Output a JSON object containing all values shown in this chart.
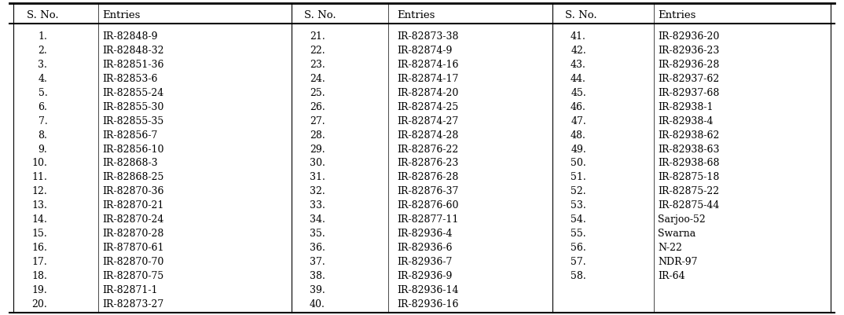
{
  "col1_nos": [
    "1.",
    "2.",
    "3.",
    "4.",
    "5.",
    "6.",
    "7.",
    "8.",
    "9.",
    "10.",
    "11.",
    "12.",
    "13.",
    "14.",
    "15.",
    "16.",
    "17.",
    "18.",
    "19.",
    "20."
  ],
  "col1_entries": [
    "IR-82848-9",
    "IR-82848-32",
    "IR-82851-36",
    "IR-82853-6",
    "IR-82855-24",
    "IR-82855-30",
    "IR-82855-35",
    "IR-82856-7",
    "IR-82856-10",
    "IR-82868-3",
    "IR-82868-25",
    "IR-82870-36",
    "IR-82870-21",
    "IR-82870-24",
    "IR-82870-28",
    "IR-87870-61",
    "IR-82870-70",
    "IR-82870-75",
    "IR-82871-1",
    "IR-82873-27"
  ],
  "col2_nos": [
    "21.",
    "22.",
    "23.",
    "24.",
    "25.",
    "26.",
    "27.",
    "28.",
    "29.",
    "30.",
    "31.",
    "32.",
    "33.",
    "34.",
    "35.",
    "36.",
    "37.",
    "38.",
    "39.",
    "40."
  ],
  "col2_entries": [
    "IR-82873-38",
    "IR-82874-9",
    "IR-82874-16",
    "IR-82874-17",
    "IR-82874-20",
    "IR-82874-25",
    "IR-82874-27",
    "IR-82874-28",
    "IR-82876-22",
    "IR-82876-23",
    "IR-82876-28",
    "IR-82876-37",
    "IR-82876-60",
    "IR-82877-11",
    "IR-82936-4",
    "IR-82936-6",
    "IR-82936-7",
    "IR-82936-9",
    "IR-82936-14",
    "IR-82936-16"
  ],
  "col3_nos": [
    "41.",
    "42.",
    "43.",
    "44.",
    "45.",
    "46.",
    "47.",
    "48.",
    "49.",
    "50.",
    "51.",
    "52.",
    "53.",
    "54.",
    "55.",
    "56.",
    "57.",
    "58.",
    "",
    ""
  ],
  "col3_entries": [
    "IR-82936-20",
    "IR-82936-23",
    "IR-82936-28",
    "IR-82937-62",
    "IR-82937-68",
    "IR-82938-1",
    "IR-82938-4",
    "IR-82938-62",
    "IR-82938-63",
    "IR-82938-68",
    "IR-82875-18",
    "IR-82875-22",
    "IR-82875-44",
    "Sarjoo-52",
    "Swarna",
    "N-22",
    "NDR-97",
    "IR-64",
    "",
    ""
  ],
  "header_sno": "S. No.",
  "header_entries": "Entries",
  "bg_color": "#ffffff",
  "header_bg": "#ffffff",
  "text_color": "#000000",
  "font_size": 9,
  "header_font_size": 9.5
}
